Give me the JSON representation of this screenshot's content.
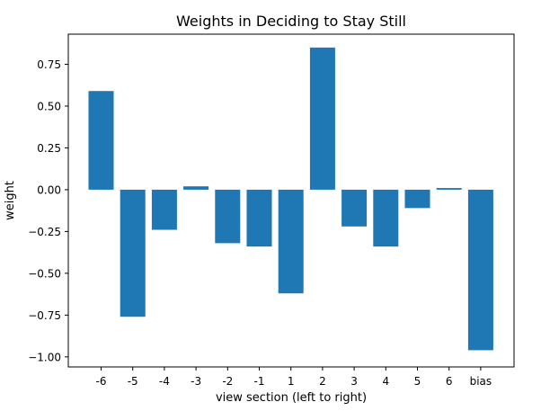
{
  "chart_data": {
    "type": "bar",
    "title": "Weights in Deciding to Stay Still",
    "xlabel": "view section (left to right)",
    "ylabel": "weight",
    "categories": [
      "-6",
      "-5",
      "-4",
      "-3",
      "-2",
      "-1",
      "1",
      "2",
      "3",
      "4",
      "5",
      "6",
      "bias"
    ],
    "values": [
      0.59,
      -0.76,
      -0.24,
      0.02,
      -0.32,
      -0.34,
      -0.62,
      0.85,
      -0.22,
      -0.34,
      -0.11,
      0.01,
      -0.96
    ],
    "ylim": [
      -1.06,
      0.93
    ],
    "yticks": [
      0.75,
      0.5,
      0.25,
      0.0,
      -0.25,
      -0.5,
      -0.75,
      -1.0
    ],
    "ytick_labels": [
      "0.75",
      "0.50",
      "0.25",
      "0.00",
      "−0.25",
      "−0.50",
      "−0.75",
      "−1.00"
    ],
    "bar_color": "#1f77b4",
    "grid": false,
    "legend": "none"
  }
}
